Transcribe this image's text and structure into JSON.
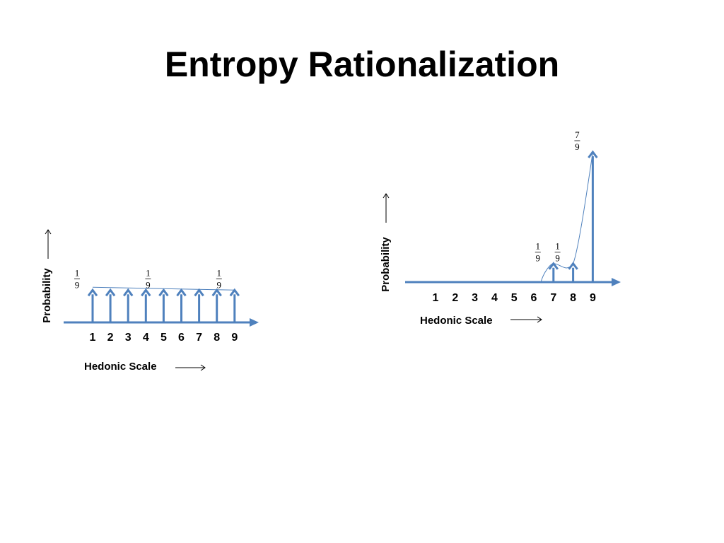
{
  "slide": {
    "title": "Entropy Rationalization"
  },
  "colors": {
    "arrow": "#4F81BD",
    "curve": "#4F81BD",
    "text": "#000000"
  },
  "chart_data": [
    {
      "type": "bar",
      "title": "",
      "xlabel": "Hedonic Scale",
      "ylabel": "Probability",
      "categories": [
        "1",
        "2",
        "3",
        "4",
        "5",
        "6",
        "7",
        "8",
        "9"
      ],
      "values": [
        0.1111,
        0.1111,
        0.1111,
        0.1111,
        0.1111,
        0.1111,
        0.1111,
        0.1111,
        0.1111
      ],
      "annotations": [
        {
          "at": "1",
          "numerator": "1",
          "denominator": "9"
        },
        {
          "at": "5",
          "numerator": "1",
          "denominator": "9"
        },
        {
          "at": "9",
          "numerator": "1",
          "denominator": "9"
        }
      ]
    },
    {
      "type": "bar",
      "title": "",
      "xlabel": "Hedonic Scale",
      "ylabel": "Probability",
      "categories": [
        "1",
        "2",
        "3",
        "4",
        "5",
        "6",
        "7",
        "8",
        "9"
      ],
      "values": [
        0,
        0,
        0,
        0,
        0,
        0,
        0.1111,
        0.1111,
        0.7778
      ],
      "annotations": [
        {
          "at": "7",
          "numerator": "1",
          "denominator": "9"
        },
        {
          "at": "8",
          "numerator": "1",
          "denominator": "9"
        },
        {
          "at": "9",
          "numerator": "7",
          "denominator": "9"
        }
      ]
    }
  ]
}
